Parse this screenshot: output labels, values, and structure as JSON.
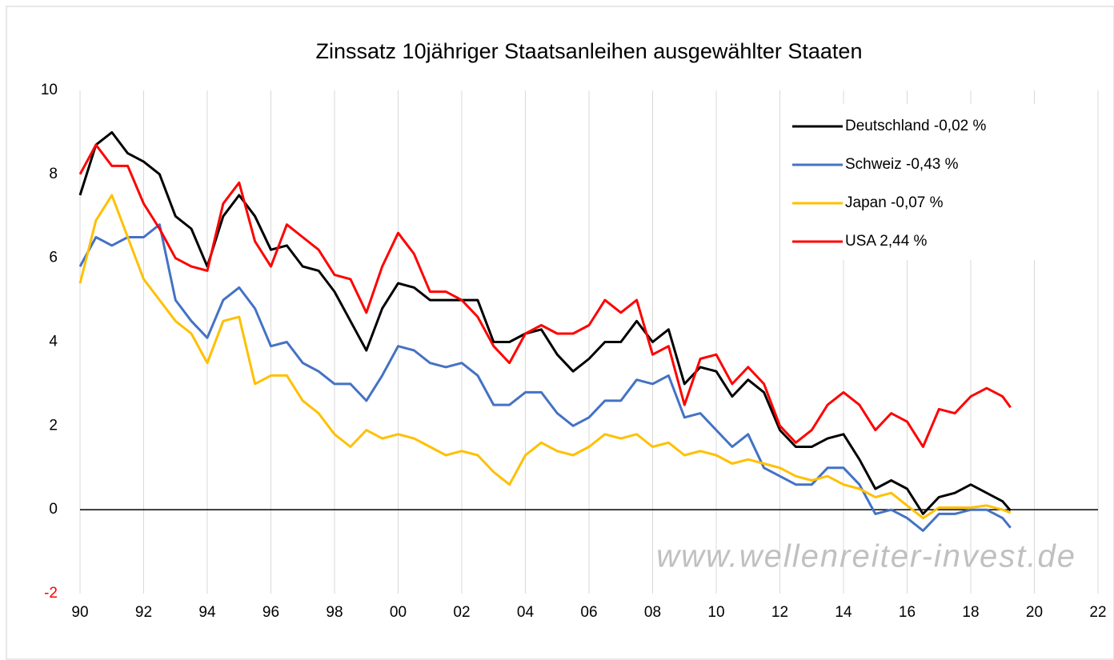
{
  "chart_data": {
    "type": "line",
    "title": "Zinssatz 10jähriger Staatsanleihen ausgewählter Staaten",
    "watermark": "www.wellenreiter-invest.de",
    "x": [
      1990,
      1990.5,
      1991,
      1991.5,
      1992,
      1992.5,
      1993,
      1993.5,
      1994,
      1994.5,
      1995,
      1995.5,
      1996,
      1996.5,
      1997,
      1997.5,
      1998,
      1998.5,
      1999,
      1999.5,
      2000,
      2000.5,
      2001,
      2001.5,
      2002,
      2002.5,
      2003,
      2003.5,
      2004,
      2004.5,
      2005,
      2005.5,
      2006,
      2006.5,
      2007,
      2007.5,
      2008,
      2008.5,
      2009,
      2009.5,
      2010,
      2010.5,
      2011,
      2011.5,
      2012,
      2012.5,
      2013,
      2013.5,
      2014,
      2014.5,
      2015,
      2015.5,
      2016,
      2016.5,
      2017,
      2017.5,
      2018,
      2018.5,
      2019,
      2019.25
    ],
    "series": [
      {
        "name": "Deutschland -0,02 %",
        "color": "#000000",
        "values": [
          7.5,
          8.7,
          9.0,
          8.5,
          8.3,
          8.0,
          7.0,
          6.7,
          5.8,
          7.0,
          7.5,
          7.0,
          6.2,
          6.3,
          5.8,
          5.7,
          5.2,
          4.5,
          3.8,
          4.8,
          5.4,
          5.3,
          5.0,
          5.0,
          5.0,
          5.0,
          4.0,
          4.0,
          4.2,
          4.3,
          3.7,
          3.3,
          3.6,
          4.0,
          4.0,
          4.5,
          4.0,
          4.3,
          3.0,
          3.4,
          3.3,
          2.7,
          3.1,
          2.8,
          1.9,
          1.5,
          1.5,
          1.7,
          1.8,
          1.2,
          0.5,
          0.7,
          0.5,
          -0.1,
          0.3,
          0.4,
          0.6,
          0.4,
          0.2,
          -0.02
        ]
      },
      {
        "name": "Schweiz -0,43 %",
        "color": "#4472c4",
        "values": [
          5.8,
          6.5,
          6.3,
          6.5,
          6.5,
          6.8,
          5.0,
          4.5,
          4.1,
          5.0,
          5.3,
          4.8,
          3.9,
          4.0,
          3.5,
          3.3,
          3.0,
          3.0,
          2.6,
          3.2,
          3.9,
          3.8,
          3.5,
          3.4,
          3.5,
          3.2,
          2.5,
          2.5,
          2.8,
          2.8,
          2.3,
          2.0,
          2.2,
          2.6,
          2.6,
          3.1,
          3.0,
          3.2,
          2.2,
          2.3,
          1.9,
          1.5,
          1.8,
          1.0,
          0.8,
          0.6,
          0.6,
          1.0,
          1.0,
          0.6,
          -0.1,
          0.0,
          -0.2,
          -0.5,
          -0.1,
          -0.1,
          0.0,
          0.0,
          -0.2,
          -0.43
        ]
      },
      {
        "name": "Japan -0,07 %",
        "color": "#ffc000",
        "values": [
          5.4,
          6.9,
          7.5,
          6.5,
          5.5,
          5.0,
          4.5,
          4.2,
          3.5,
          4.5,
          4.6,
          3.0,
          3.2,
          3.2,
          2.6,
          2.3,
          1.8,
          1.5,
          1.9,
          1.7,
          1.8,
          1.7,
          1.5,
          1.3,
          1.4,
          1.3,
          0.9,
          0.6,
          1.3,
          1.6,
          1.4,
          1.3,
          1.5,
          1.8,
          1.7,
          1.8,
          1.5,
          1.6,
          1.3,
          1.4,
          1.3,
          1.1,
          1.2,
          1.1,
          1.0,
          0.8,
          0.7,
          0.8,
          0.6,
          0.5,
          0.3,
          0.4,
          0.1,
          -0.2,
          0.05,
          0.05,
          0.05,
          0.1,
          0.0,
          -0.07
        ]
      },
      {
        "name": "USA 2,44 %",
        "color": "#ff0000",
        "values": [
          8.0,
          8.7,
          8.2,
          8.2,
          7.3,
          6.7,
          6.0,
          5.8,
          5.7,
          7.3,
          7.8,
          6.4,
          5.8,
          6.8,
          6.5,
          6.2,
          5.6,
          5.5,
          4.7,
          5.8,
          6.6,
          6.1,
          5.2,
          5.2,
          5.0,
          4.6,
          3.9,
          3.5,
          4.2,
          4.4,
          4.2,
          4.2,
          4.4,
          5.0,
          4.7,
          5.0,
          3.7,
          3.9,
          2.5,
          3.6,
          3.7,
          3.0,
          3.4,
          3.0,
          2.0,
          1.6,
          1.9,
          2.5,
          2.8,
          2.5,
          1.9,
          2.3,
          2.1,
          1.5,
          2.4,
          2.3,
          2.7,
          2.9,
          2.7,
          2.44
        ]
      }
    ],
    "xlim": [
      1990,
      2022
    ],
    "xticks": [
      {
        "value": 1990,
        "label": "90"
      },
      {
        "value": 1992,
        "label": "92"
      },
      {
        "value": 1994,
        "label": "94"
      },
      {
        "value": 1996,
        "label": "96"
      },
      {
        "value": 1998,
        "label": "98"
      },
      {
        "value": 2000,
        "label": "00"
      },
      {
        "value": 2002,
        "label": "02"
      },
      {
        "value": 2004,
        "label": "04"
      },
      {
        "value": 2006,
        "label": "06"
      },
      {
        "value": 2008,
        "label": "08"
      },
      {
        "value": 2010,
        "label": "10"
      },
      {
        "value": 2012,
        "label": "12"
      },
      {
        "value": 2014,
        "label": "14"
      },
      {
        "value": 2016,
        "label": "16"
      },
      {
        "value": 2018,
        "label": "18"
      },
      {
        "value": 2020,
        "label": "20"
      },
      {
        "value": 2022,
        "label": "22"
      }
    ],
    "ylim": [
      -2,
      10
    ],
    "yticks": [
      -2,
      0,
      2,
      4,
      6,
      8,
      10
    ],
    "negative_tick_color": "#ff0000",
    "grid": "x",
    "legend": "upper right"
  }
}
